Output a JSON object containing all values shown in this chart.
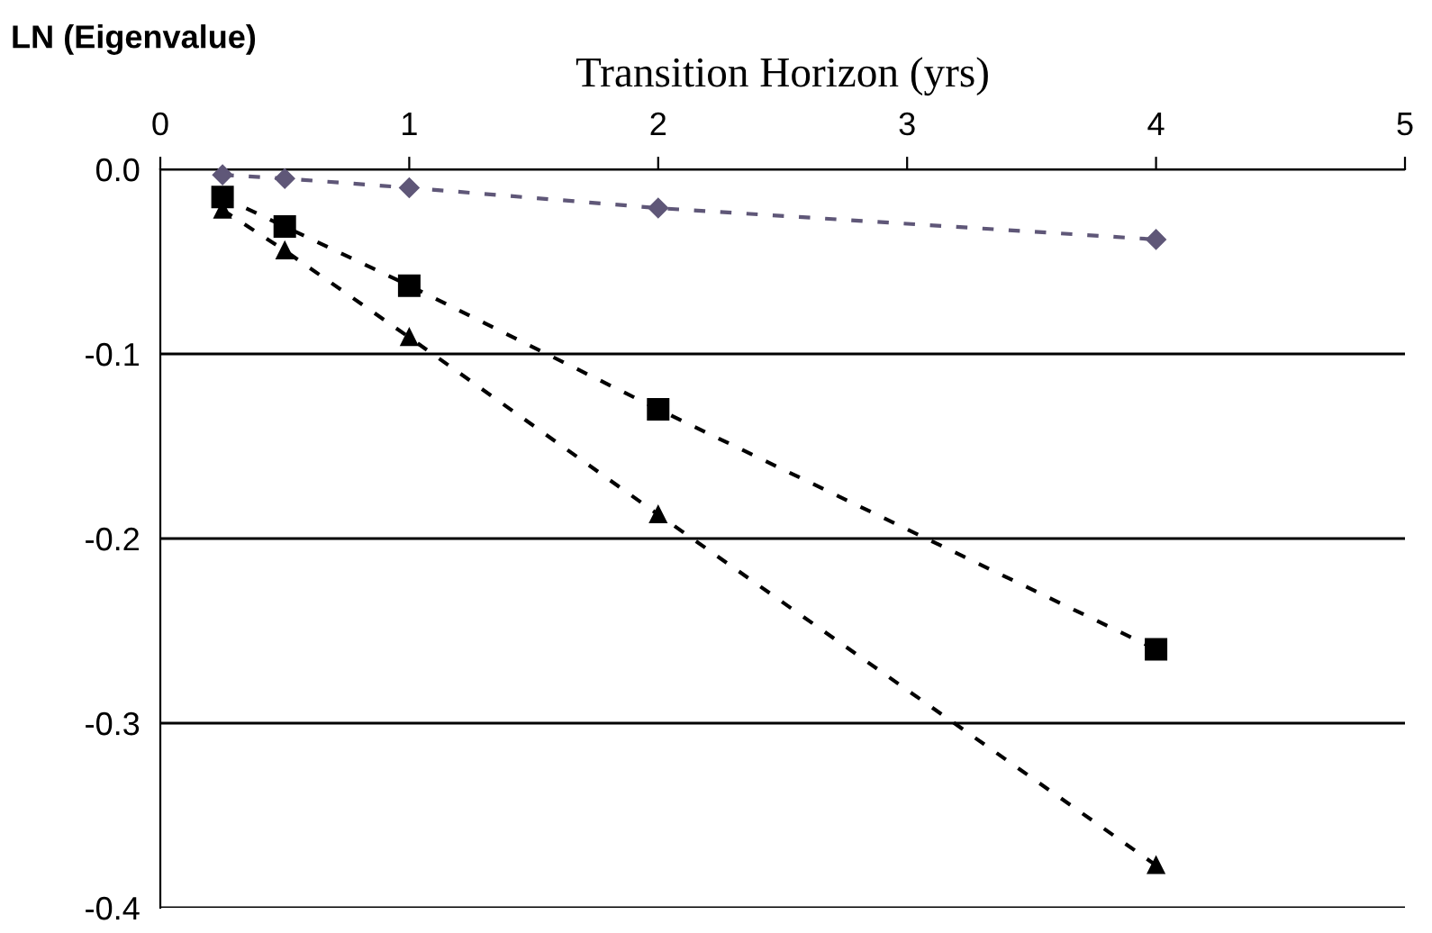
{
  "chart_data": {
    "type": "line",
    "xlabel": "Transition Horizon (yrs)",
    "ylabel": "LN (Eigenvalue)",
    "x": [
      0.25,
      0.5,
      1,
      2,
      4
    ],
    "series": [
      {
        "color": "#5f5778",
        "marker": "diamond",
        "values": [
          -0.003,
          -0.005,
          -0.01,
          -0.021,
          -0.038
        ]
      },
      {
        "color": "#000000",
        "marker": "square",
        "values": [
          -0.015,
          -0.031,
          -0.063,
          -0.13,
          -0.26
        ]
      },
      {
        "color": "#000000",
        "marker": "triangle",
        "values": [
          -0.022,
          -0.044,
          -0.091,
          -0.187,
          -0.377
        ]
      }
    ],
    "line_style": "dashed",
    "xlim": [
      0,
      5
    ],
    "xticks": [
      0,
      1,
      2,
      3,
      4,
      5
    ],
    "ylim": [
      -0.4,
      0
    ],
    "yticks": [
      {
        "value": 0,
        "label": "0.0"
      },
      {
        "value": -0.1,
        "label": "-0.1"
      },
      {
        "value": -0.2,
        "label": "-0.2"
      },
      {
        "value": -0.3,
        "label": "-0.3"
      },
      {
        "value": -0.4,
        "label": "-0.4"
      }
    ],
    "grid": "y"
  }
}
